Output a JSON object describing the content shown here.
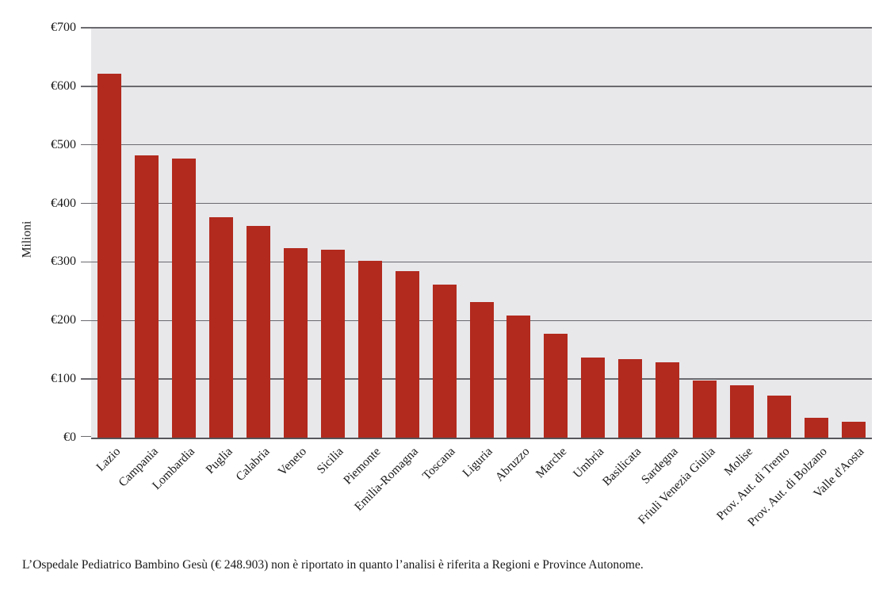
{
  "chart_data": {
    "type": "bar",
    "title": "",
    "xlabel": "",
    "ylabel": "Milioni",
    "categories": [
      "Lazio",
      "Campania",
      "Lombardia",
      "Puglia",
      "Calabria",
      "Veneto",
      "Sicilia",
      "Piemonte",
      "Emilia-Romagna",
      "Toscana",
      "Liguria",
      "Abruzzo",
      "Marche",
      "Umbria",
      "Basilicata",
      "Sardegna",
      "Friuli Venezia Giulia",
      "Molise",
      "Prov. Aut. di Trento",
      "Prov. Aut. di Bolzano",
      "Valle d'Aosta"
    ],
    "values": [
      622,
      482,
      476,
      377,
      362,
      323,
      321,
      302,
      285,
      261,
      232,
      209,
      178,
      137,
      134,
      129,
      98,
      90,
      72,
      34,
      27
    ],
    "ylim": [
      0,
      700
    ],
    "ytick_interval": 100,
    "ytick_prefix": "€",
    "ytick_labels": [
      "€0",
      "€100",
      "€200",
      "€300",
      "€400",
      "€500",
      "€600",
      "€700"
    ],
    "grid": true,
    "legend": "none",
    "bar_color": "#B2291D",
    "plot_background": "#E8E8EB",
    "gridline_color": "#6a6a6f",
    "axis_line_color": "#55555a"
  },
  "footnote": "L’Ospedale Pediatrico Bambino Gesù (€ 248.903) non è riportato in quanto l’analisi è riferita a Regioni e Province Autonome."
}
